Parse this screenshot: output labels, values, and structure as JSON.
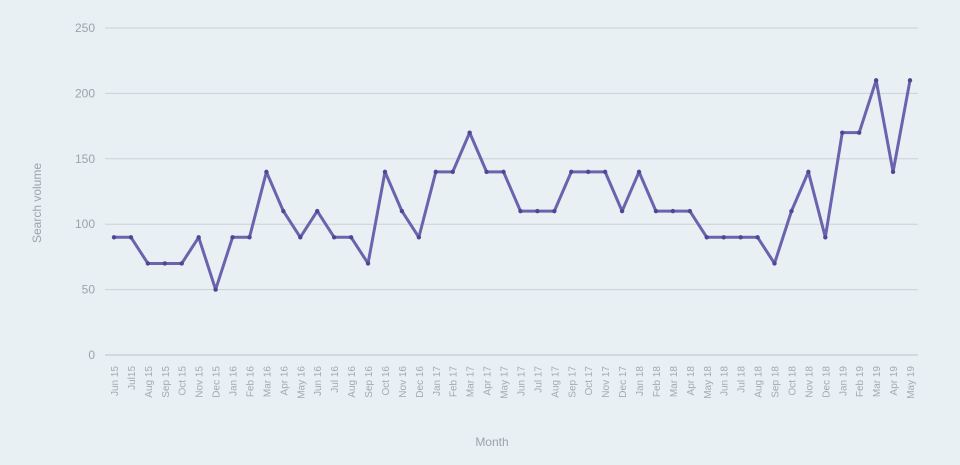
{
  "colors": {
    "background": "#e9f0f3",
    "series": "#6a63ad",
    "point": "#4d4794"
  },
  "chart_data": {
    "type": "line",
    "xlabel": "Month",
    "ylabel": "Search volume",
    "ylim": [
      0,
      250
    ],
    "yticks": [
      0,
      50,
      100,
      150,
      200,
      250
    ],
    "grid": true,
    "legend": "none",
    "categories": [
      "Jun 15",
      "Jul15",
      "Aug 15",
      "Sep 15",
      "Oct 15",
      "Nov 15",
      "Dec 15",
      "Jan 16",
      "Feb 16",
      "Mar 16",
      "Apr 16",
      "May 16",
      "Jun 16",
      "Jul 16",
      "Aug 16",
      "Sep 16",
      "Oct 16",
      "Nov 16",
      "Dec 16",
      "Jan 17",
      "Feb 17",
      "Mar 17",
      "Apr 17",
      "May 17",
      "Jun 17",
      "Jul 17",
      "Aug 17",
      "Sep 17",
      "Oct 17",
      "Nov 17",
      "Dec 17",
      "Jan 18",
      "Feb 18",
      "Mar 18",
      "Apr 18",
      "May 18",
      "Jun 18",
      "Jul 18",
      "Aug 18",
      "Sep 18",
      "Oct 18",
      "Nov 18",
      "Dec 18",
      "Jan 19",
      "Feb 19",
      "Mar 19",
      "Apr 19",
      "May 19"
    ],
    "series": [
      {
        "values": [
          90,
          90,
          70,
          70,
          70,
          90,
          50,
          90,
          90,
          140,
          110,
          90,
          110,
          90,
          90,
          70,
          140,
          110,
          90,
          140,
          140,
          170,
          140,
          140,
          110,
          110,
          110,
          140,
          140,
          140,
          110,
          140,
          110,
          110,
          110,
          90,
          90,
          90,
          90,
          70,
          110,
          140,
          90,
          170,
          170,
          210,
          140,
          210
        ]
      }
    ]
  }
}
